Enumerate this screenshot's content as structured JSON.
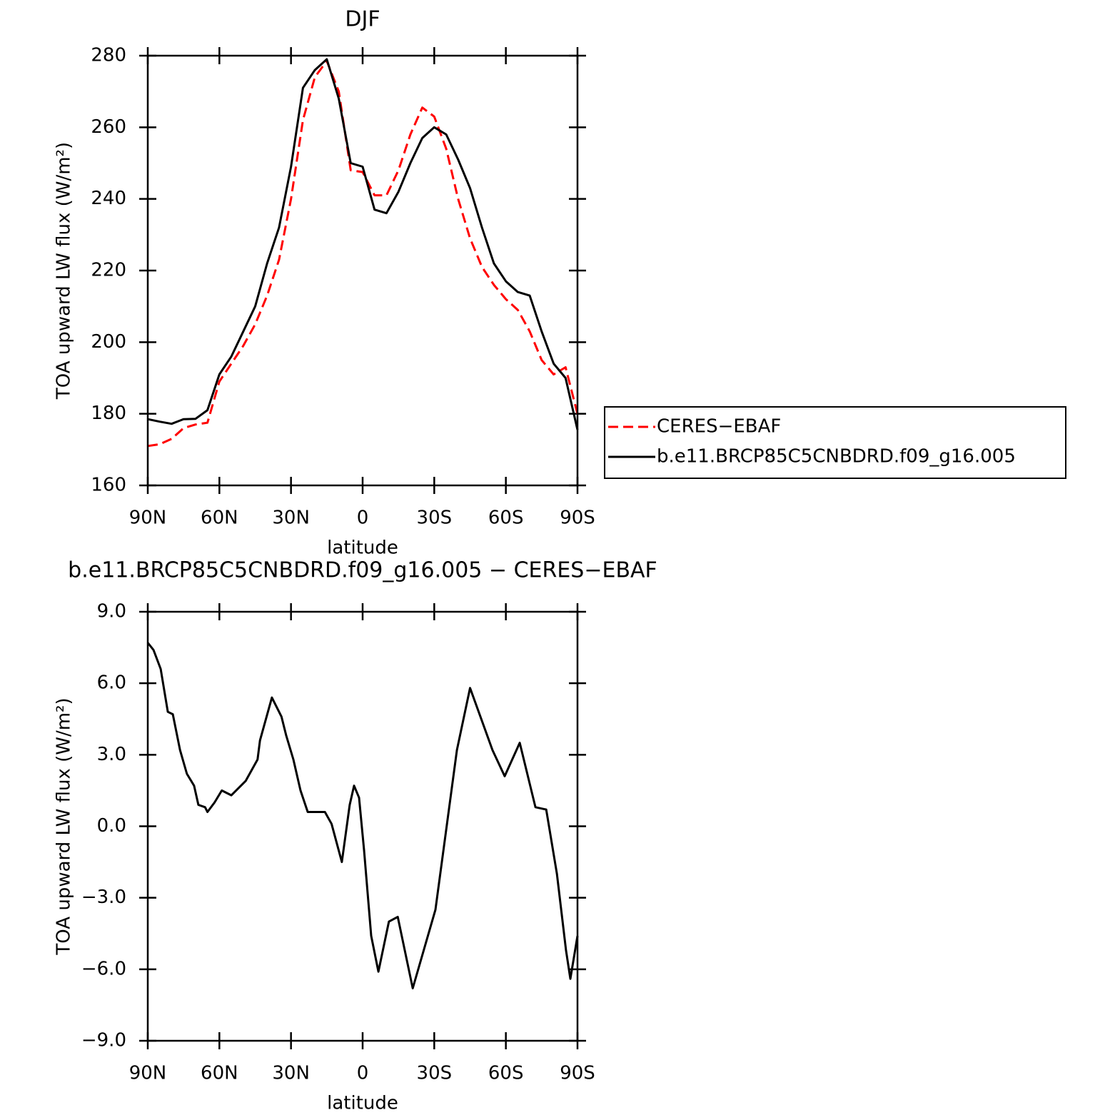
{
  "chart_data": [
    {
      "type": "line",
      "title": "DJF",
      "xlabel": "latitude",
      "ylabel": "TOA upward LW flux (W/m²)",
      "x": [
        90,
        85,
        80,
        75,
        70,
        65,
        60,
        55,
        50,
        45,
        40,
        35,
        30,
        25,
        20,
        15,
        10,
        5,
        0,
        -5,
        -10,
        -15,
        -20,
        -25,
        -30,
        -35,
        -40,
        -45,
        -50,
        -55,
        -60,
        -65,
        -70,
        -75,
        -80,
        -85,
        -90
      ],
      "xlim": [
        90,
        -90
      ],
      "xticks": [
        {
          "value": 90,
          "label": "90N"
        },
        {
          "value": 60,
          "label": "60N"
        },
        {
          "value": 30,
          "label": "30N"
        },
        0,
        {
          "value": -30,
          "label": "30S"
        },
        {
          "value": -60,
          "label": "60S"
        },
        {
          "value": -90,
          "label": "90S"
        }
      ],
      "ylim": [
        160,
        280
      ],
      "yticks": [
        160,
        180,
        200,
        220,
        240,
        260,
        280
      ],
      "legend": "right",
      "series": [
        {
          "name": "CERES−EBAF",
          "color": "#ff0000",
          "dashed": true,
          "values": [
            171,
            171.5,
            173,
            176,
            177,
            177.5,
            189,
            194,
            199,
            205,
            213,
            223,
            240,
            262,
            274,
            278.5,
            270,
            248,
            247.5,
            241,
            241,
            248,
            258,
            265.5,
            263,
            254,
            240,
            229,
            221,
            216,
            212,
            209,
            203,
            195,
            191,
            193,
            180
          ]
        },
        {
          "name": "b.e11.BRCP85C5CNBDRD.f09_g16.005",
          "color": "#000000",
          "dashed": false,
          "values": [
            178.5,
            177.8,
            177.2,
            178.5,
            178.6,
            181,
            191,
            196,
            203,
            210,
            222,
            232,
            249,
            271,
            276,
            279,
            268,
            250,
            249,
            237,
            236,
            242,
            250,
            257,
            260,
            258,
            251,
            243,
            232,
            222,
            217,
            214,
            213,
            203,
            194,
            190,
            175.5
          ]
        }
      ]
    },
    {
      "type": "line",
      "title": "b.e11.BRCP85C5CNBDRD.f09_g16.005 − CERES−EBAF",
      "xlabel": "latitude",
      "ylabel": "TOA upward LW flux (W/m²)",
      "x": [
        90,
        87.6,
        84.6,
        81.6,
        79.5,
        76.5,
        73.6,
        70.6,
        68.8,
        66,
        65,
        62,
        59,
        55,
        49,
        44,
        43,
        38,
        34,
        32,
        29,
        26,
        23,
        20,
        15.8,
        13,
        8.7,
        5.4,
        3.6,
        1.5,
        -0.6,
        -3.6,
        -6.6,
        -11,
        -14.7,
        -21,
        -30.5,
        -39.5,
        -45,
        -54.4,
        -59.5,
        -65.8,
        -72.4,
        -76.9,
        -81.4,
        -85.2,
        -87,
        -90
      ],
      "xlim": [
        90,
        -90
      ],
      "xticks": [
        {
          "value": 90,
          "label": "90N"
        },
        {
          "value": 60,
          "label": "60N"
        },
        {
          "value": 30,
          "label": "30N"
        },
        0,
        {
          "value": -30,
          "label": "30S"
        },
        {
          "value": -60,
          "label": "60S"
        },
        {
          "value": -90,
          "label": "90S"
        }
      ],
      "ylim": [
        -9,
        9
      ],
      "yticks": [
        {
          "value": -9,
          "label": "−9.0"
        },
        {
          "value": -6,
          "label": "−6.0"
        },
        {
          "value": -3,
          "label": "−3.0"
        },
        {
          "value": 0,
          "label": "0.0"
        },
        {
          "value": 3,
          "label": "3.0"
        },
        {
          "value": 6,
          "label": "6.0"
        },
        {
          "value": 9,
          "label": "9.0"
        }
      ],
      "series": [
        {
          "color": "#000000",
          "dashed": false,
          "values": [
            7.7,
            7.4,
            6.6,
            4.8,
            4.7,
            3.2,
            2.2,
            1.7,
            0.9,
            0.8,
            0.6,
            1.0,
            1.5,
            1.3,
            1.9,
            2.8,
            3.6,
            5.4,
            4.6,
            3.8,
            2.8,
            1.5,
            0.6,
            0.6,
            0.6,
            0.1,
            -1.5,
            0.9,
            1.7,
            1.2,
            -1.0,
            -4.6,
            -6.1,
            -4.0,
            -3.8,
            -6.8,
            -3.5,
            3.2,
            5.8,
            3.2,
            2.1,
            3.5,
            0.8,
            0.7,
            -2.0,
            -5.2,
            -6.4,
            -4.6
          ]
        }
      ]
    }
  ]
}
